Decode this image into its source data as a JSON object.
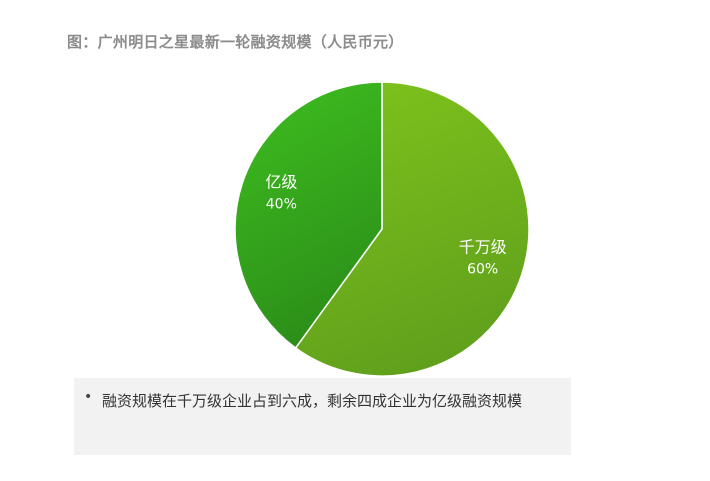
{
  "title": "图：广州明日之星最新一轮融资规模（人民币元）",
  "chart_data": {
    "type": "pie",
    "title": "图：广州明日之星最新一轮融资规模（人民币元）",
    "slices": [
      {
        "label": "千万级",
        "value": 60,
        "value_label": "60%",
        "color": "#7cc11c",
        "color_dark": "#5f9f1c"
      },
      {
        "label": "亿级",
        "value": 40,
        "value_label": "40%",
        "color": "#3dbb1f",
        "color_dark": "#2b8c18"
      }
    ],
    "start_angle": "top, clockwise",
    "legend": "none"
  },
  "note": {
    "bullet": "•",
    "text": "融资规模在千万级企业占到六成，剩余四成企业为亿级融资规模"
  }
}
